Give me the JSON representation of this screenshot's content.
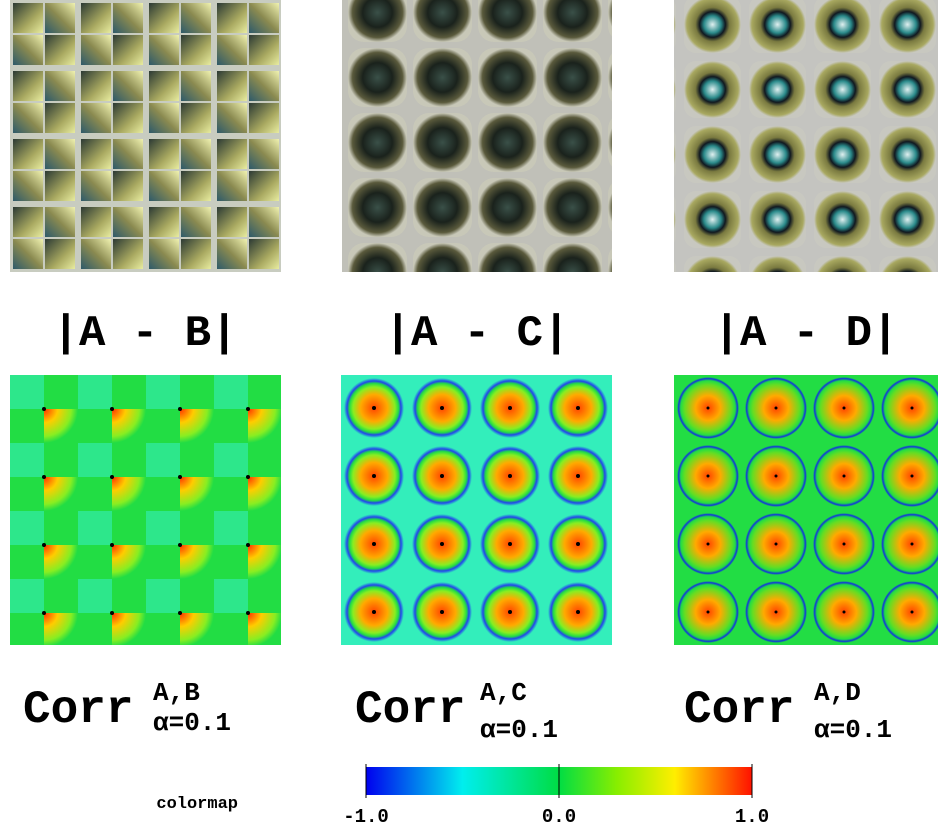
{
  "panels": [
    {
      "diff_label": "|A - B|",
      "corr": "Corr",
      "sup": "A,B",
      "sub": "α=0.1"
    },
    {
      "diff_label": "|A - C|",
      "corr": "Corr",
      "sup": "A,C",
      "sub": "α=0.1"
    },
    {
      "diff_label": "|A - D|",
      "corr": "Corr",
      "sup": "A,D",
      "sub": "α=0.1"
    }
  ],
  "colorbar": {
    "label": "colormap",
    "range": [
      -1,
      1
    ],
    "ticks": [
      {
        "value": -1,
        "label": "-1.0"
      },
      {
        "value": 0,
        "label": "0.0"
      },
      {
        "value": 1,
        "label": "1.0"
      }
    ]
  }
}
